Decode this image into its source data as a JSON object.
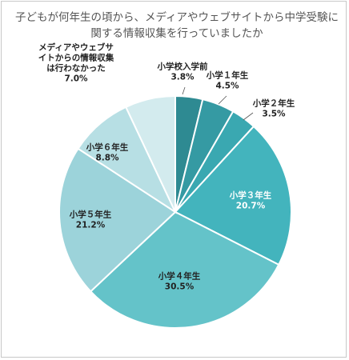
{
  "chart_data": {
    "type": "pie",
    "title": "子どもが何年生の頃から、メディアやウェブサイトから中学受験に関する情報収集を行っていましたか",
    "slices": [
      {
        "label": [
          "小学校入学前"
        ],
        "pct_text": "3.8%",
        "value": 3.8,
        "color": "#2e8a92"
      },
      {
        "label": [
          "小学１年生"
        ],
        "pct_text": "4.5%",
        "value": 4.5,
        "color": "#359aa3"
      },
      {
        "label": [
          "小学２年生"
        ],
        "pct_text": "3.5%",
        "value": 3.5,
        "color": "#3aa8b1"
      },
      {
        "label": [
          "小学３年生"
        ],
        "pct_text": "20.7%",
        "value": 20.7,
        "color": "#43b4bd"
      },
      {
        "label": [
          "小学４年生"
        ],
        "pct_text": "30.5%",
        "value": 30.5,
        "color": "#64c3c9"
      },
      {
        "label": [
          "小学５年生"
        ],
        "pct_text": "21.2%",
        "value": 21.2,
        "color": "#9cd3da"
      },
      {
        "label": [
          "小学６年生"
        ],
        "pct_text": "8.8%",
        "value": 8.8,
        "color": "#b7dfe4"
      },
      {
        "label": [
          "メディアやウェブサ",
          "イトからの情報収集",
          "は行わなかった"
        ],
        "pct_text": "7.0%",
        "value": 7.0,
        "color": "#d3ebee"
      }
    ]
  }
}
